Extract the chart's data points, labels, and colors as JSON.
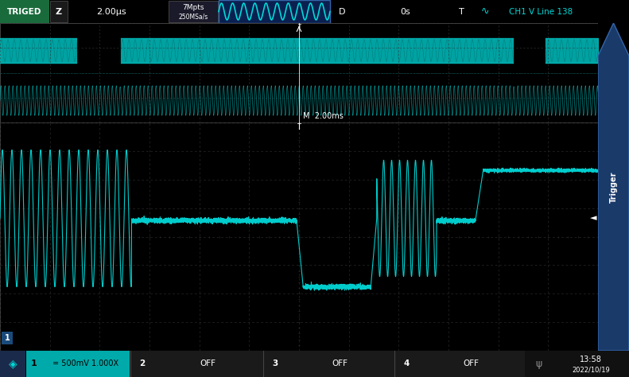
{
  "bg_color": "#000000",
  "cyan": "#00D8D8",
  "cyan_fill": "#00C0C0",
  "green_header": "#1a6b3c",
  "grid_color": "#2a2a2a",
  "grid_dash_color": "#303060",
  "header_bg": "#0a0a0a",
  "footer_bg": "#1a1a1a",
  "trigger_tab_color": "#1a3a6a",
  "fig_width": 7.91,
  "fig_height": 4.74,
  "dpi": 100,
  "header_items": {
    "triged": "TRIGED",
    "z": "Z",
    "timescale": "2.00µs",
    "mem": "7Mpts",
    "srate": "250MSa/s",
    "d": "D",
    "delay": "0s",
    "t": "T",
    "ch_info": "CH1 V Line 138"
  },
  "footer_items": {
    "ch1_label": "1",
    "ch1_info": "= 500mV 1.000X",
    "ch2": "2",
    "ch2_state": "OFF",
    "ch3": "3",
    "ch3_state": "OFF",
    "ch4": "4",
    "ch4_state": "OFF",
    "time": "13:58",
    "date": "2022/10/19"
  },
  "mini_label": "M  2.00ms"
}
